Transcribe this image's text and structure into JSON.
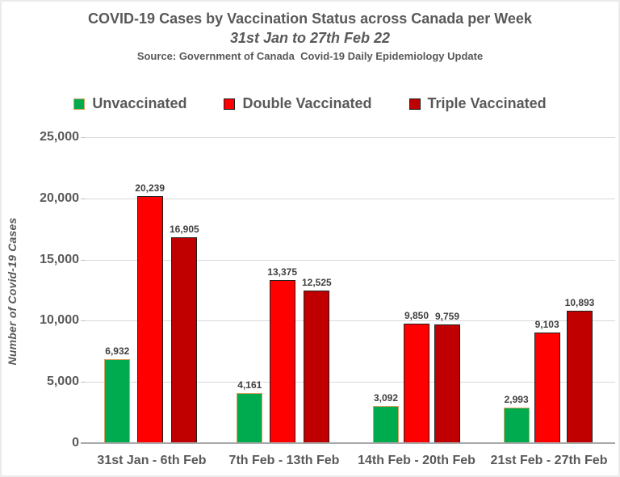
{
  "header": {
    "title": "COVID-19 Cases by Vaccination Status across Canada per Week",
    "subtitle": "31st Jan to 27th Feb 22",
    "source": "Source: Government of Canada  Covid-19 Daily Epidemiology Update"
  },
  "colors": {
    "text_gray": "#595959",
    "data_label": "#404040",
    "gridline": "#d9d9d9",
    "axis_line": "#a9a9a9",
    "green": "#00ab4f",
    "green_border": "#d7a05f",
    "red": "#fe0000",
    "dark_red": "#c00000",
    "red_border": "#1f1f1f"
  },
  "chart_data": {
    "type": "bar",
    "title": "COVID-19 Cases by Vaccination Status across Canada per Week",
    "subtitle": "31st Jan to 27th Feb 22",
    "source_note": "Source: Government of Canada  Covid-19 Daily Epidemiology Update",
    "categories": [
      "31st Jan - 6th Feb",
      "7th Feb - 13th Feb",
      "14th Feb - 20th Feb",
      "21st Feb - 27th Feb"
    ],
    "series": [
      {
        "name": "Unvaccinated",
        "color": "#00ab4f",
        "border": "#d7a05f",
        "values": [
          6932,
          4161,
          3092,
          2993
        ]
      },
      {
        "name": "Double Vaccinated",
        "color": "#fe0000",
        "border": "#1f1f1f",
        "values": [
          20239,
          13375,
          9850,
          9103
        ]
      },
      {
        "name": "Triple Vaccinated",
        "color": "#c00000",
        "border": "#1f1f1f",
        "values": [
          16905,
          12525,
          9759,
          10893
        ]
      }
    ],
    "xlabel": "",
    "ylabel": "Number of Covid-19 Cases",
    "ylim": [
      0,
      25000
    ],
    "ytick_step": 5000,
    "grid": true,
    "legend_position": "top",
    "data_labels": true
  }
}
